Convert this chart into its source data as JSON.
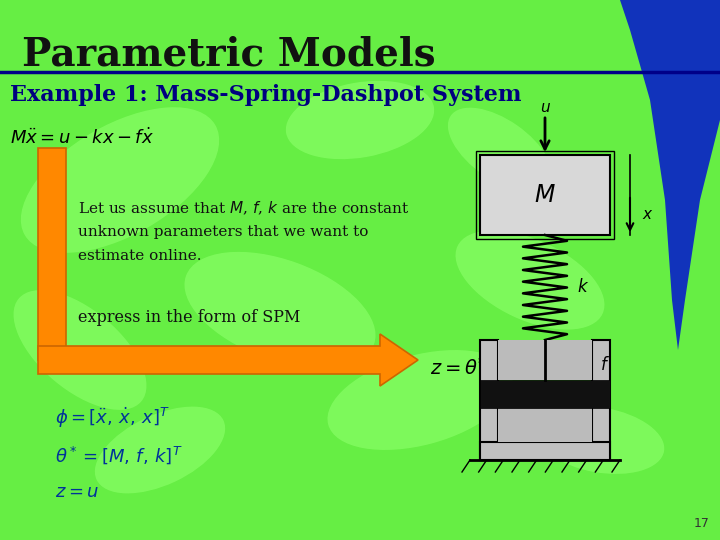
{
  "title": "Parametric Models",
  "subtitle": "Example 1: Mass-Spring-Dashpot System",
  "bg_color": "#66ee44",
  "leaf_color": "#88ff66",
  "title_color": "#111111",
  "subtitle_color": "#000080",
  "text_color": "#111111",
  "orange_color": "#FF8800",
  "orange_dark": "#CC6600",
  "blue_swoosh_color": "#1133BB",
  "title_line_color": "#000088",
  "slide_number": "17",
  "bottom_eq_color": "#003399"
}
